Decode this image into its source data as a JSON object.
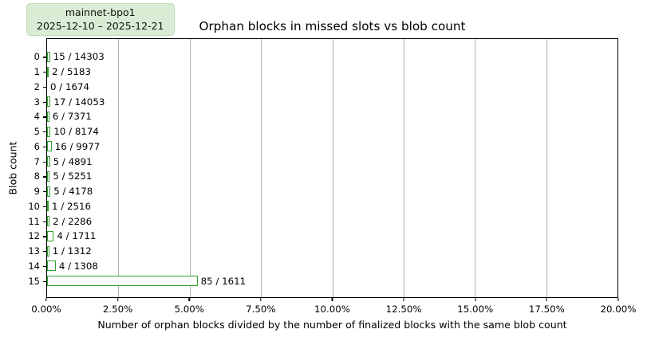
{
  "badge": {
    "title": "mainnet-bpo1",
    "date_range": "2025-12-10 – 2025-12-21"
  },
  "title": "Orphan blocks in missed slots vs blob count",
  "axes": {
    "xlabel": "Number of orphan blocks divided by the number of finalized blocks with the same blob count",
    "ylabel": "Blob count"
  },
  "colors": {
    "bar_fill": "#ffffff",
    "bar_edge": "#2ca02c",
    "grid": "#b2b2b2",
    "badge_bg": "#d9ecd4",
    "badge_border": "#bedbb6",
    "text": "#000000"
  },
  "chart_data": {
    "type": "bar",
    "orientation": "horizontal",
    "title": "Orphan blocks in missed slots vs blob count",
    "xlabel": "Number of orphan blocks divided by the number of finalized blocks with the same blob count",
    "ylabel": "Blob count",
    "xlim": [
      0,
      20
    ],
    "xtick_labels": [
      "0.00%",
      "2.50%",
      "5.00%",
      "7.50%",
      "10.00%",
      "12.50%",
      "15.00%",
      "17.50%",
      "20.00%"
    ],
    "grid": true,
    "legend": {
      "position": "top-left",
      "lines": [
        "mainnet-bpo1",
        "2025-12-10 – 2025-12-21"
      ]
    },
    "categories": [
      "0",
      "1",
      "2",
      "3",
      "4",
      "5",
      "6",
      "7",
      "8",
      "9",
      "10",
      "11",
      "12",
      "13",
      "14",
      "15"
    ],
    "bars": [
      {
        "blob_count": "0",
        "orphan": 15,
        "finalized": 14303,
        "percent": 0.1049,
        "label": "15 / 14303"
      },
      {
        "blob_count": "1",
        "orphan": 2,
        "finalized": 5183,
        "percent": 0.0386,
        "label": "2 / 5183"
      },
      {
        "blob_count": "2",
        "orphan": 0,
        "finalized": 1674,
        "percent": 0.0,
        "label": "0 / 1674"
      },
      {
        "blob_count": "3",
        "orphan": 17,
        "finalized": 14053,
        "percent": 0.121,
        "label": "17 / 14053"
      },
      {
        "blob_count": "4",
        "orphan": 6,
        "finalized": 7371,
        "percent": 0.0814,
        "label": "6 / 7371"
      },
      {
        "blob_count": "5",
        "orphan": 10,
        "finalized": 8174,
        "percent": 0.1223,
        "label": "10 / 8174"
      },
      {
        "blob_count": "6",
        "orphan": 16,
        "finalized": 9977,
        "percent": 0.1604,
        "label": "16 / 9977"
      },
      {
        "blob_count": "7",
        "orphan": 5,
        "finalized": 4891,
        "percent": 0.1022,
        "label": "5 / 4891"
      },
      {
        "blob_count": "8",
        "orphan": 5,
        "finalized": 5251,
        "percent": 0.0952,
        "label": "5 / 5251"
      },
      {
        "blob_count": "9",
        "orphan": 5,
        "finalized": 4178,
        "percent": 0.1197,
        "label": "5 / 4178"
      },
      {
        "blob_count": "10",
        "orphan": 1,
        "finalized": 2516,
        "percent": 0.0397,
        "label": "1 / 2516"
      },
      {
        "blob_count": "11",
        "orphan": 2,
        "finalized": 2286,
        "percent": 0.0875,
        "label": "2 / 2286"
      },
      {
        "blob_count": "12",
        "orphan": 4,
        "finalized": 1711,
        "percent": 0.2338,
        "label": "4 / 1711"
      },
      {
        "blob_count": "13",
        "orphan": 1,
        "finalized": 1312,
        "percent": 0.0762,
        "label": "1 / 1312"
      },
      {
        "blob_count": "14",
        "orphan": 4,
        "finalized": 1308,
        "percent": 0.3058,
        "label": "4 / 1308"
      },
      {
        "blob_count": "15",
        "orphan": 85,
        "finalized": 1611,
        "percent": 5.2762,
        "label": "85 / 1611"
      }
    ]
  }
}
